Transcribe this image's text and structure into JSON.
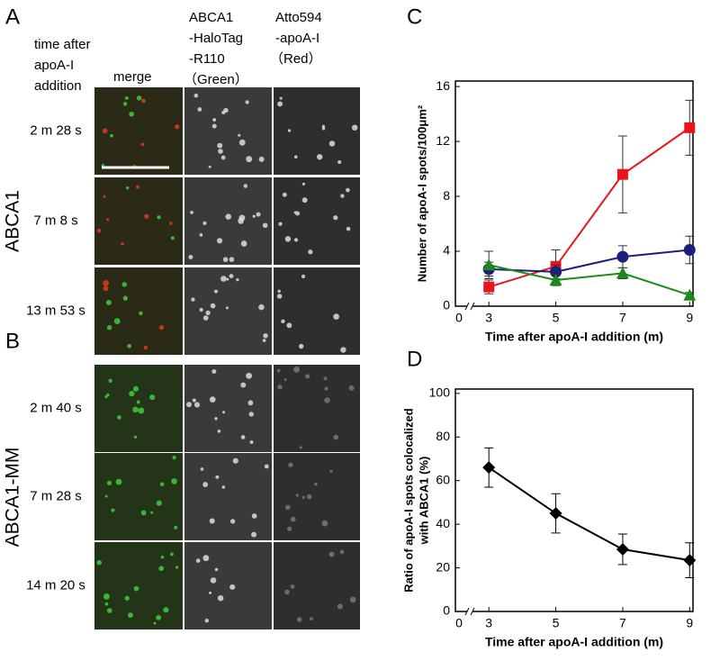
{
  "panel_labels": [
    "A",
    "B",
    "C",
    "D"
  ],
  "microscopy": {
    "header": [
      "time after",
      "apoA-I",
      "addition"
    ],
    "columns": [
      [
        "merge"
      ],
      [
        "ABCA1",
        "-HaloTag",
        "-R110",
        "（Green）"
      ],
      [
        "Atto594",
        "-apoA-I",
        "（Red）"
      ]
    ],
    "groups": [
      {
        "name": "ABCA1",
        "rows": [
          "2 m 28 s",
          "7 m 8 s",
          "13 m 53 s"
        ]
      },
      {
        "name": "ABCA1-MM",
        "rows": [
          "2 m  40 s",
          "7 m 28 s",
          "14 m 20 s"
        ]
      }
    ]
  },
  "chart_data": [
    {
      "type": "line",
      "ylabel": [
        "Number of apoA-I spots/100μm²"
      ],
      "xlabel": "Time after apoA-I addition (m)",
      "x": [
        3,
        5,
        7,
        9
      ],
      "xlim": [
        2,
        9.1
      ],
      "xticks": [
        0,
        3,
        5,
        7,
        9
      ],
      "axis_break": true,
      "ylim": [
        0,
        16.4
      ],
      "yticks": [
        0,
        4,
        8,
        12,
        16
      ],
      "series": [
        {
          "color": "#e8161b",
          "marker": "square",
          "values": [
            1.4,
            2.9,
            9.6,
            13.0
          ],
          "errors": [
            0.5,
            1.2,
            2.8,
            2.0
          ]
        },
        {
          "color": "#1a1f7a",
          "marker": "circle",
          "values": [
            2.7,
            2.5,
            3.6,
            4.1
          ],
          "errors": [
            0.5,
            0.5,
            0.8,
            1.0
          ]
        },
        {
          "color": "#1e8a1e",
          "marker": "triangle",
          "values": [
            3.0,
            1.9,
            2.4,
            0.8
          ],
          "errors": [
            1.0,
            0.4,
            0.4,
            0.2
          ]
        }
      ]
    },
    {
      "type": "line",
      "ylabel": [
        "Ratio of apoA-I spots colocalized",
        "with ABCA1 (%)"
      ],
      "xlabel": "Time after apoA-I addition (m)",
      "x": [
        3,
        5,
        7,
        9
      ],
      "xlim": [
        2,
        9.1
      ],
      "xticks": [
        0,
        3,
        5,
        7,
        9
      ],
      "axis_break": true,
      "ylim": [
        0,
        102
      ],
      "yticks": [
        0,
        20,
        40,
        60,
        80,
        100
      ],
      "series": [
        {
          "color": "#000000",
          "marker": "diamond",
          "values": [
            66,
            45,
            28.5,
            23.5
          ],
          "errors": [
            9,
            9,
            7,
            8
          ]
        }
      ]
    }
  ]
}
